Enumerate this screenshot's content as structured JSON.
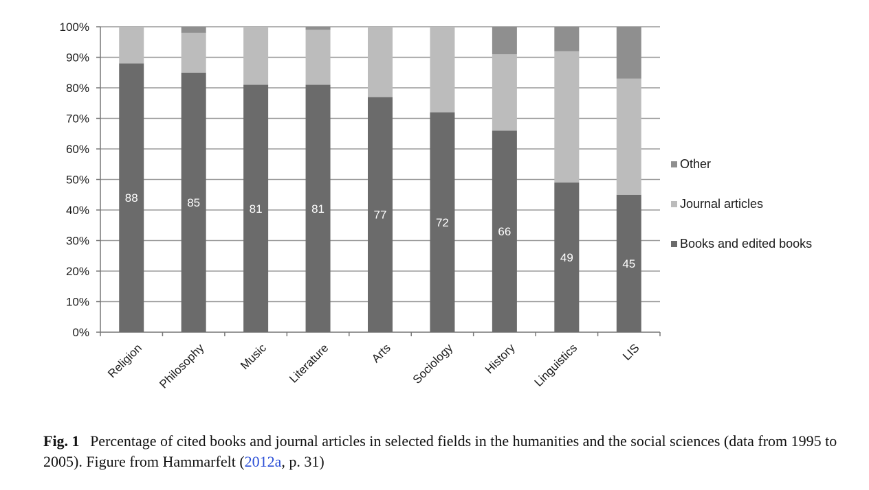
{
  "chart_data": {
    "type": "bar",
    "stacked": true,
    "categories": [
      "Religion",
      "Philosophy",
      "Music",
      "Literature",
      "Arts",
      "Sociology",
      "History",
      "Linguistics",
      "LIS"
    ],
    "series": [
      {
        "name": "Books and edited books",
        "color": "#6b6b6b",
        "values": [
          88,
          85,
          81,
          81,
          77,
          72,
          66,
          49,
          45
        ],
        "labels": [
          "88",
          "85",
          "81",
          "81",
          "77",
          "72",
          "66",
          "49",
          "45"
        ]
      },
      {
        "name": "Journal articles",
        "color": "#bcbcbc",
        "values": [
          12,
          13,
          19,
          18,
          23,
          28,
          25,
          43,
          38
        ]
      },
      {
        "name": "Other",
        "color": "#8f8f8f",
        "values": [
          0,
          2,
          0,
          1,
          0,
          0,
          9,
          8,
          17
        ]
      }
    ],
    "legend_order": [
      "Other",
      "Journal articles",
      "Books and edited books"
    ],
    "y_ticks": [
      "0%",
      "10%",
      "20%",
      "30%",
      "40%",
      "50%",
      "60%",
      "70%",
      "80%",
      "90%",
      "100%"
    ],
    "ylim": [
      0,
      100
    ],
    "title": "",
    "xlabel": "",
    "ylabel": "",
    "grid": true,
    "legend_position": "right"
  },
  "caption": {
    "figure_number": "Fig. 1",
    "text_before_link": "Percentage of cited books and journal articles in selected fields in the humanities and the social sciences (data from 1995 to 2005). Figure from Hammarfelt (",
    "link_text": "2012a",
    "text_after_link": ", p. 31)"
  }
}
